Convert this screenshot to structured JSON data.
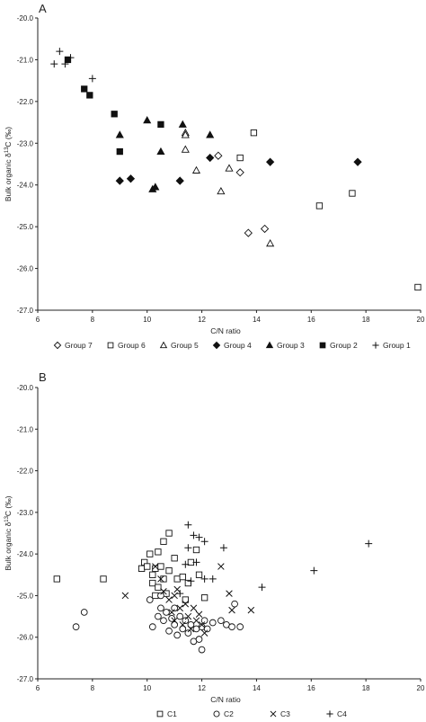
{
  "chart_data": [
    {
      "panel_label": "A",
      "type": "scatter",
      "xlabel": "C/N ratio",
      "ylabel_main": "Bulk organic δ",
      "ylabel_sup": "13",
      "ylabel_tail": "C (‰)",
      "xlim": [
        6,
        20
      ],
      "ylim": [
        -27.0,
        -20.0
      ],
      "xticks": [
        "6",
        "8",
        "10",
        "12",
        "14",
        "16",
        "18",
        "20"
      ],
      "yticks": [
        "-20.0",
        "-21.0",
        "-22.0",
        "-23.0",
        "-24.0",
        "-25.0",
        "-26.0",
        "-27.0"
      ],
      "legend_position": "bottom",
      "legend": [
        {
          "label": "Group 7",
          "marker": "diamond-open"
        },
        {
          "label": "Group 6",
          "marker": "square-open"
        },
        {
          "label": "Group 5",
          "marker": "triangle-open"
        },
        {
          "label": "Group 4",
          "marker": "diamond-filled"
        },
        {
          "label": "Group 3",
          "marker": "triangle-filled"
        },
        {
          "label": "Group 2",
          "marker": "square-filled"
        },
        {
          "label": "Group 1",
          "marker": "plus"
        }
      ],
      "series": [
        {
          "name": "Group 1",
          "marker": "plus",
          "points": [
            [
              6.6,
              -21.1
            ],
            [
              6.8,
              -20.8
            ],
            [
              7.0,
              -21.1
            ],
            [
              7.2,
              -20.95
            ],
            [
              8.0,
              -21.45
            ]
          ]
        },
        {
          "name": "Group 2",
          "marker": "square-filled",
          "points": [
            [
              7.1,
              -21.0
            ],
            [
              7.7,
              -21.7
            ],
            [
              7.9,
              -21.85
            ],
            [
              8.8,
              -22.3
            ],
            [
              9.0,
              -23.2
            ],
            [
              10.5,
              -22.55
            ]
          ]
        },
        {
          "name": "Group 3",
          "marker": "triangle-filled",
          "points": [
            [
              9.0,
              -22.8
            ],
            [
              10.0,
              -22.45
            ],
            [
              10.2,
              -24.1
            ],
            [
              10.3,
              -24.05
            ],
            [
              10.5,
              -23.2
            ],
            [
              11.3,
              -22.55
            ],
            [
              12.3,
              -22.8
            ]
          ]
        },
        {
          "name": "Group 4",
          "marker": "diamond-filled",
          "points": [
            [
              9.0,
              -23.9
            ],
            [
              9.4,
              -23.85
            ],
            [
              11.2,
              -23.9
            ],
            [
              12.3,
              -23.35
            ],
            [
              14.5,
              -23.45
            ],
            [
              17.7,
              -23.45
            ]
          ]
        },
        {
          "name": "Group 5",
          "marker": "triangle-open",
          "points": [
            [
              11.4,
              -22.75
            ],
            [
              11.4,
              -22.8
            ],
            [
              11.4,
              -23.15
            ],
            [
              11.8,
              -23.65
            ],
            [
              12.7,
              -24.15
            ],
            [
              13.0,
              -23.6
            ],
            [
              14.5,
              -25.4
            ]
          ]
        },
        {
          "name": "Group 6",
          "marker": "square-open",
          "points": [
            [
              13.4,
              -23.35
            ],
            [
              13.9,
              -22.75
            ],
            [
              16.3,
              -24.5
            ],
            [
              17.5,
              -24.2
            ],
            [
              19.9,
              -26.45
            ]
          ]
        },
        {
          "name": "Group 7",
          "marker": "diamond-open",
          "points": [
            [
              12.6,
              -23.3
            ],
            [
              13.4,
              -23.7
            ],
            [
              13.7,
              -25.15
            ],
            [
              14.3,
              -25.05
            ]
          ]
        }
      ]
    },
    {
      "panel_label": "B",
      "type": "scatter",
      "xlabel": "C/N ratio",
      "ylabel_main": "Bulk organic δ",
      "ylabel_sup": "13",
      "ylabel_tail": "C (‰)",
      "xlim": [
        6,
        20
      ],
      "ylim": [
        -27.0,
        -20.0
      ],
      "xticks": [
        "6",
        "8",
        "10",
        "12",
        "14",
        "16",
        "18",
        "20"
      ],
      "yticks": [
        "-20.0",
        "-21.0",
        "-22.0",
        "-23.0",
        "-24.0",
        "-25.0",
        "-26.0",
        "-27.0"
      ],
      "legend_position": "bottom",
      "legend": [
        {
          "label": "C1",
          "marker": "square-open"
        },
        {
          "label": "C2",
          "marker": "circle-open"
        },
        {
          "label": "C3",
          "marker": "x"
        },
        {
          "label": "C4",
          "marker": "plus"
        }
      ],
      "series": [
        {
          "name": "C1",
          "marker": "square-open",
          "points": [
            [
              6.7,
              -24.6
            ],
            [
              8.4,
              -24.6
            ],
            [
              9.8,
              -24.35
            ],
            [
              9.9,
              -24.2
            ],
            [
              10.0,
              -24.3
            ],
            [
              10.1,
              -24.0
            ],
            [
              10.2,
              -24.5
            ],
            [
              10.3,
              -24.35
            ],
            [
              10.4,
              -23.95
            ],
            [
              10.5,
              -24.3
            ],
            [
              10.6,
              -23.7
            ],
            [
              10.8,
              -23.5
            ],
            [
              11.0,
              -24.1
            ],
            [
              10.2,
              -24.7
            ],
            [
              10.4,
              -24.8
            ],
            [
              10.6,
              -24.6
            ],
            [
              10.8,
              -24.4
            ],
            [
              11.1,
              -24.6
            ],
            [
              11.3,
              -24.55
            ],
            [
              11.5,
              -24.7
            ],
            [
              11.6,
              -24.2
            ],
            [
              11.8,
              -23.9
            ],
            [
              11.9,
              -24.5
            ],
            [
              12.1,
              -25.05
            ],
            [
              10.3,
              -25.0
            ],
            [
              10.7,
              -24.95
            ],
            [
              11.4,
              -25.1
            ]
          ]
        },
        {
          "name": "C2",
          "marker": "circle-open",
          "points": [
            [
              7.4,
              -25.75
            ],
            [
              7.7,
              -25.4
            ],
            [
              10.1,
              -25.1
            ],
            [
              10.2,
              -25.75
            ],
            [
              10.4,
              -25.5
            ],
            [
              10.5,
              -25.3
            ],
            [
              10.6,
              -25.6
            ],
            [
              10.7,
              -25.4
            ],
            [
              10.8,
              -25.85
            ],
            [
              10.9,
              -25.55
            ],
            [
              11.0,
              -25.7
            ],
            [
              11.1,
              -25.95
            ],
            [
              11.2,
              -25.5
            ],
            [
              11.3,
              -25.8
            ],
            [
              11.4,
              -25.6
            ],
            [
              11.5,
              -25.9
            ],
            [
              11.6,
              -25.7
            ],
            [
              11.7,
              -26.1
            ],
            [
              11.8,
              -25.8
            ],
            [
              11.9,
              -26.05
            ],
            [
              12.0,
              -25.75
            ],
            [
              12.0,
              -26.3
            ],
            [
              12.1,
              -25.6
            ],
            [
              12.2,
              -25.8
            ],
            [
              12.4,
              -25.65
            ],
            [
              12.7,
              -25.6
            ],
            [
              12.9,
              -25.7
            ],
            [
              13.1,
              -25.75
            ],
            [
              13.2,
              -25.2
            ],
            [
              13.4,
              -25.75
            ],
            [
              10.5,
              -25.0
            ],
            [
              11.0,
              -25.3
            ]
          ]
        },
        {
          "name": "C3",
          "marker": "x",
          "points": [
            [
              9.2,
              -25.0
            ],
            [
              10.3,
              -24.3
            ],
            [
              10.5,
              -24.6
            ],
            [
              10.6,
              -24.9
            ],
            [
              10.8,
              -25.1
            ],
            [
              10.9,
              -25.4
            ],
            [
              11.0,
              -25.0
            ],
            [
              11.0,
              -25.6
            ],
            [
              11.1,
              -24.85
            ],
            [
              11.2,
              -25.3
            ],
            [
              11.3,
              -25.7
            ],
            [
              11.4,
              -25.2
            ],
            [
              11.5,
              -25.5
            ],
            [
              11.6,
              -25.8
            ],
            [
              11.7,
              -25.3
            ],
            [
              11.8,
              -25.6
            ],
            [
              11.9,
              -25.45
            ],
            [
              12.0,
              -25.7
            ],
            [
              12.1,
              -25.9
            ],
            [
              13.1,
              -25.35
            ],
            [
              13.8,
              -25.35
            ],
            [
              13.0,
              -24.95
            ],
            [
              12.7,
              -24.3
            ]
          ]
        },
        {
          "name": "C4",
          "marker": "plus",
          "points": [
            [
              11.5,
              -23.3
            ],
            [
              11.7,
              -23.55
            ],
            [
              11.9,
              -23.6
            ],
            [
              11.5,
              -23.85
            ],
            [
              12.1,
              -23.7
            ],
            [
              12.8,
              -23.85
            ],
            [
              11.8,
              -24.2
            ],
            [
              11.4,
              -24.25
            ],
            [
              12.1,
              -24.6
            ],
            [
              12.4,
              -24.6
            ],
            [
              11.6,
              -24.65
            ],
            [
              11.2,
              -24.95
            ],
            [
              14.2,
              -24.8
            ],
            [
              16.1,
              -24.4
            ],
            [
              18.1,
              -23.75
            ]
          ]
        }
      ]
    }
  ]
}
